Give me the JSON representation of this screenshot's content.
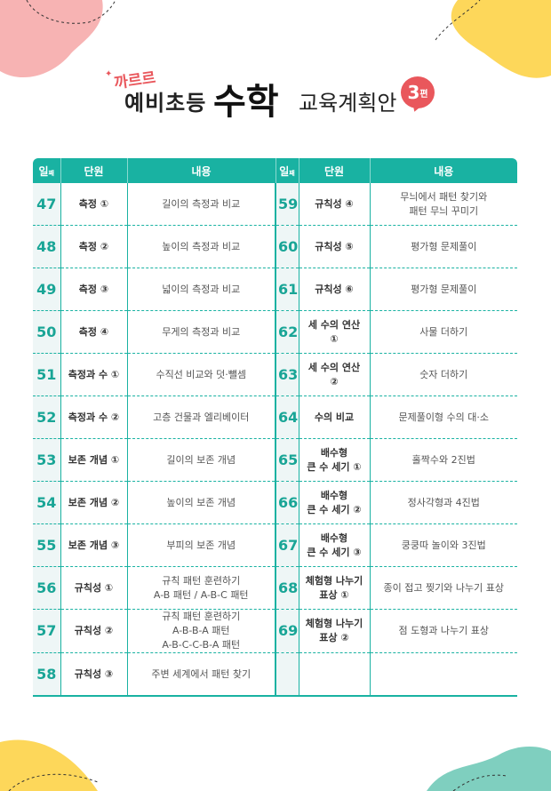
{
  "title": {
    "kkaruru": "까르르",
    "yebi": "예비초등",
    "suhak": "수학",
    "plan": "교육계획안",
    "badge_num": "3",
    "badge_unit": "편"
  },
  "colors": {
    "accent": "#19b2a2",
    "brand_red": "#e9575c",
    "pink": "#f7b3b3",
    "yellow": "#fdd75a",
    "teal_light": "#7fcfbf"
  },
  "table": {
    "headers": [
      {
        "day": "일",
        "day_suffix": "째",
        "unit": "단원",
        "content": "내용"
      },
      {
        "day": "일",
        "day_suffix": "째",
        "unit": "단원",
        "content": "내용"
      }
    ],
    "rows": [
      [
        {
          "day": "47",
          "unit": "측정 ①",
          "content": "길이의 측정과 비교"
        },
        {
          "day": "59",
          "unit": "규칙성 ④",
          "content": "무늬에서 패턴 찾기와\n패턴 무늬 꾸미기"
        }
      ],
      [
        {
          "day": "48",
          "unit": "측정 ②",
          "content": "높이의 측정과 비교"
        },
        {
          "day": "60",
          "unit": "규칙성 ⑤",
          "content": "평가형 문제풀이"
        }
      ],
      [
        {
          "day": "49",
          "unit": "측정 ③",
          "content": "넓이의 측정과 비교"
        },
        {
          "day": "61",
          "unit": "규칙성 ⑥",
          "content": "평가형 문제풀이"
        }
      ],
      [
        {
          "day": "50",
          "unit": "측정 ④",
          "content": "무게의 측정과 비교"
        },
        {
          "day": "62",
          "unit": "세 수의 연산\n①",
          "content": "사물 더하기"
        }
      ],
      [
        {
          "day": "51",
          "unit": "측정과 수 ①",
          "content": "수직선 비교와 덧·뺄셈"
        },
        {
          "day": "63",
          "unit": "세 수의 연산\n②",
          "content": "숫자 더하기"
        }
      ],
      [
        {
          "day": "52",
          "unit": "측정과 수 ②",
          "content": "고층 건물과 엘리베이터"
        },
        {
          "day": "64",
          "unit": "수의 비교",
          "content": "문제풀이형 수의 대·소"
        }
      ],
      [
        {
          "day": "53",
          "unit": "보존 개념 ①",
          "content": "길이의 보존 개념"
        },
        {
          "day": "65",
          "unit": "배수형\n큰 수 세기 ①",
          "content": "홀짝수와 2진법"
        }
      ],
      [
        {
          "day": "54",
          "unit": "보존 개념 ②",
          "content": "높이의 보존 개념"
        },
        {
          "day": "66",
          "unit": "배수형\n큰 수 세기 ②",
          "content": "정사각형과 4진법"
        }
      ],
      [
        {
          "day": "55",
          "unit": "보존 개념 ③",
          "content": "부피의 보존 개념"
        },
        {
          "day": "67",
          "unit": "배수형\n큰 수 세기 ③",
          "content": "쿵쿵따 놀이와 3진법"
        }
      ],
      [
        {
          "day": "56",
          "unit": "규칙성 ①",
          "content": "규칙 패턴 훈련하기\nA-B 패턴 / A-B-C 패턴"
        },
        {
          "day": "68",
          "unit": "체험형 나누기\n표상 ①",
          "content": "종이 접고 찢기와 나누기 표상"
        }
      ],
      [
        {
          "day": "57",
          "unit": "규칙성 ②",
          "content": "규칙 패턴 훈련하기\nA-B-B-A 패턴\nA-B-C-C-B-A 패턴"
        },
        {
          "day": "69",
          "unit": "체험형 나누기\n표상 ②",
          "content": "점 도형과 나누기 표상"
        }
      ],
      [
        {
          "day": "58",
          "unit": "규칙성 ③",
          "content": "주변 세계에서 패턴 찾기"
        },
        {
          "day": "",
          "unit": "",
          "content": ""
        }
      ]
    ]
  }
}
